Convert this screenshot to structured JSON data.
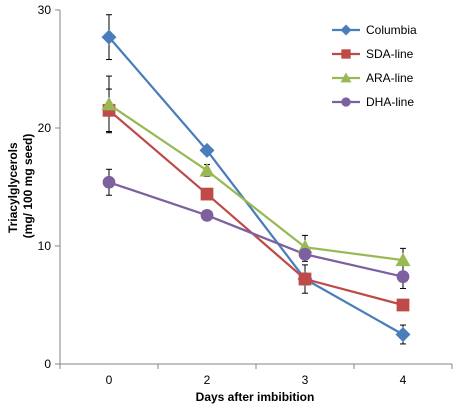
{
  "chart_data": {
    "type": "line",
    "xlabel": "Days after imbibition",
    "ylabel_lines": [
      "Triacylglycerols",
      "(mg/ 100 mg seed)"
    ],
    "categories": [
      "0",
      "2",
      "3",
      "4"
    ],
    "ylim": [
      0,
      30
    ],
    "yticks": [
      0,
      10,
      20,
      30
    ],
    "grid": false,
    "legend_position": "top-right",
    "series": [
      {
        "name": "Columbia",
        "marker": "diamond",
        "color": "#4a7ebb",
        "values": [
          27.7,
          18.1,
          7.2,
          2.5
        ],
        "errors": [
          1.9,
          0.3,
          0.5,
          0.8
        ]
      },
      {
        "name": "SDA-line",
        "marker": "square",
        "color": "#be4b48",
        "values": [
          21.5,
          14.4,
          7.2,
          5.0
        ],
        "errors": [
          1.8,
          0.4,
          1.2,
          0.3
        ]
      },
      {
        "name": "ARA-line",
        "marker": "triangle",
        "color": "#98b954",
        "values": [
          22.0,
          16.4,
          9.9,
          8.8
        ],
        "errors": [
          2.4,
          0.5,
          1.0,
          1.0
        ]
      },
      {
        "name": "DHA-line",
        "marker": "circle",
        "color": "#7d60a0",
        "values": [
          15.4,
          12.6,
          9.3,
          7.4
        ],
        "errors": [
          1.1,
          0.4,
          0.6,
          1.0
        ]
      }
    ]
  }
}
